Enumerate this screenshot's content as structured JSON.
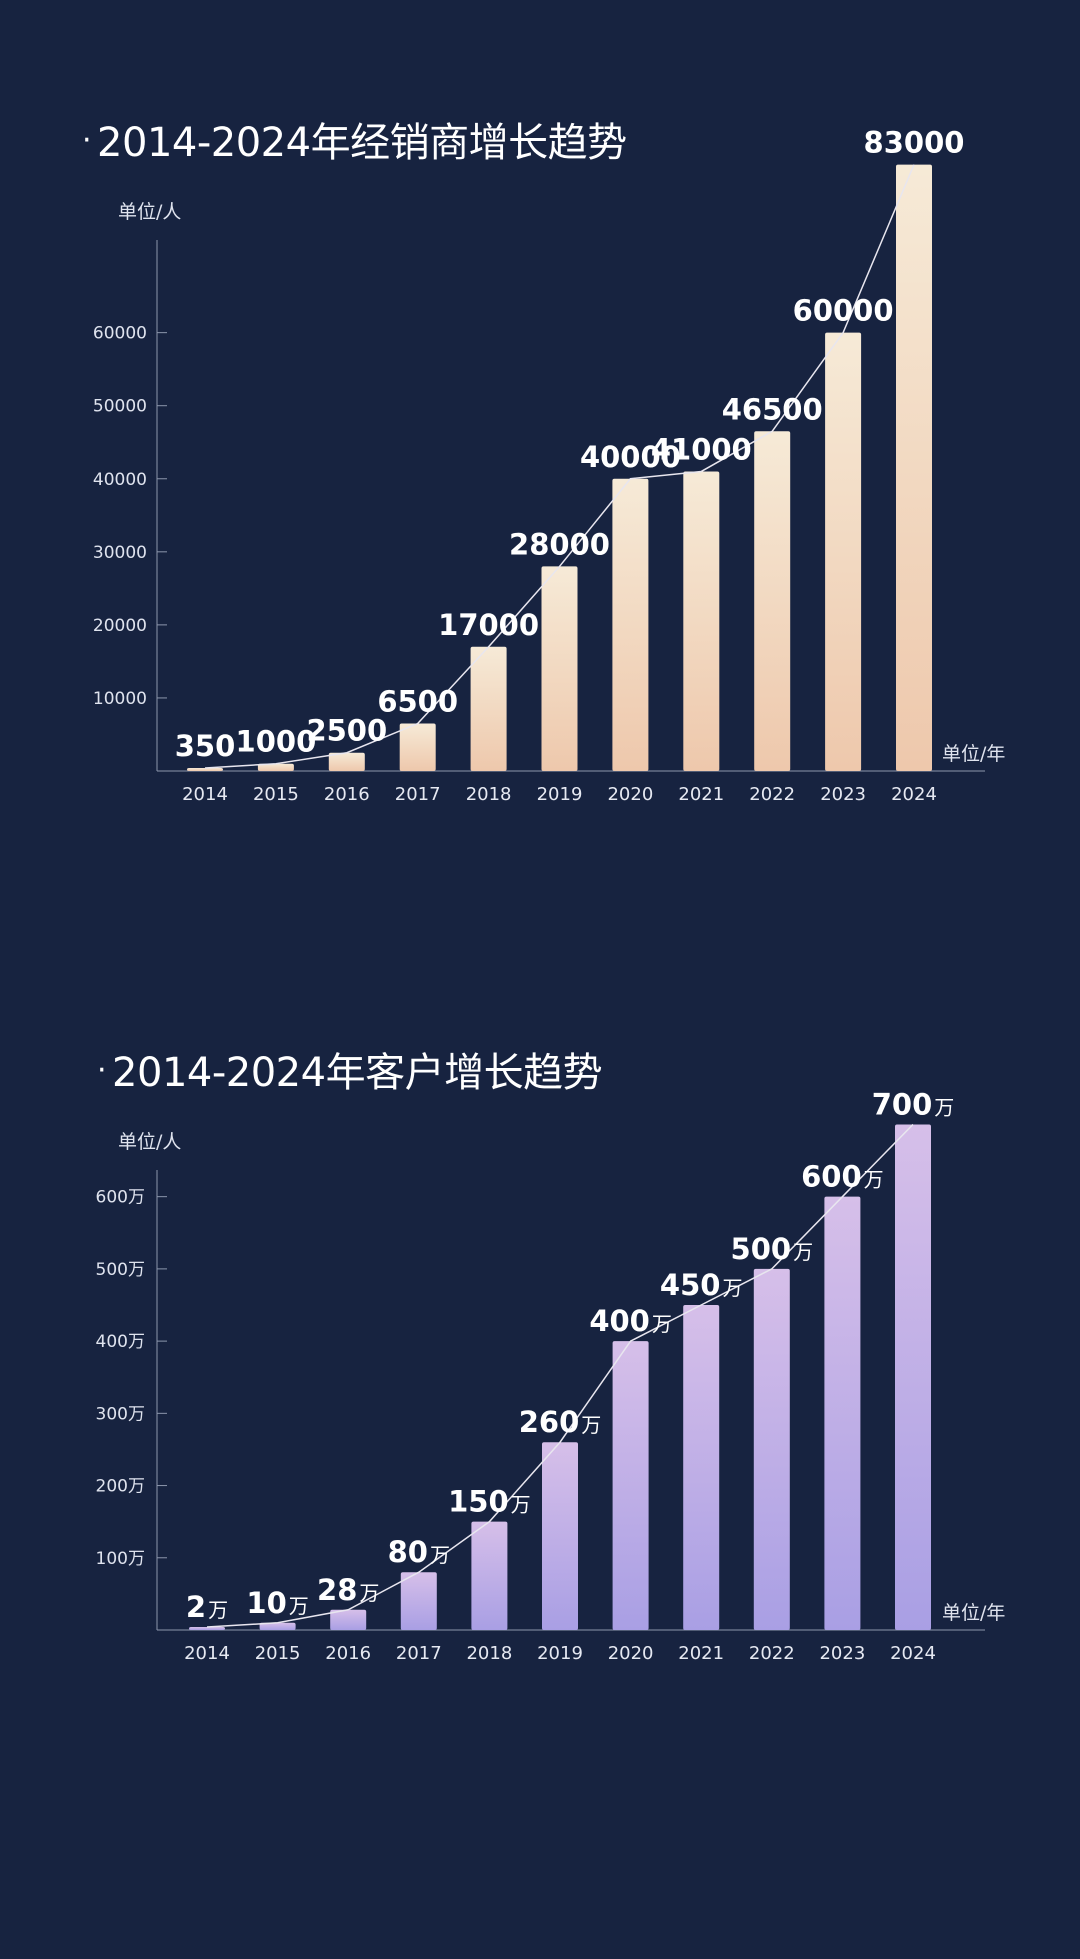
{
  "chart_data": [
    {
      "type": "bar",
      "title_prefix": "·",
      "title": "2014-2024年经销商增长趋势",
      "ylabel": "单位/人",
      "xlabel": "单位/年",
      "categories": [
        "2014",
        "2015",
        "2016",
        "2017",
        "2018",
        "2019",
        "2020",
        "2021",
        "2022",
        "2023",
        "2024"
      ],
      "values": [
        350,
        1000,
        2500,
        6500,
        17000,
        28000,
        40000,
        41000,
        46500,
        60000,
        83000
      ],
      "value_labels": [
        "350",
        "1000",
        "2500",
        "6500",
        "17000",
        "28000",
        "40000",
        "41000",
        "46500",
        "60000",
        "83000"
      ],
      "value_suffix": "",
      "yticks": [
        10000,
        20000,
        30000,
        40000,
        50000,
        60000
      ],
      "ytick_labels": [
        "10000",
        "20000",
        "30000",
        "40000",
        "50000",
        "60000"
      ],
      "ylim": [
        0,
        85000
      ],
      "grid": false,
      "trend_line": true,
      "bar_gradient": [
        "#f6ead7",
        "#eec8ac"
      ]
    },
    {
      "type": "bar",
      "title_prefix": "·",
      "title": "2014-2024年客户增长趋势",
      "ylabel": "单位/人",
      "xlabel": "单位/年",
      "categories": [
        "2014",
        "2015",
        "2016",
        "2017",
        "2018",
        "2019",
        "2020",
        "2021",
        "2022",
        "2023",
        "2024"
      ],
      "values": [
        2,
        10,
        28,
        80,
        150,
        260,
        400,
        450,
        500,
        600,
        700
      ],
      "value_labels": [
        "2",
        "10",
        "28",
        "80",
        "150",
        "260",
        "400",
        "450",
        "500",
        "600",
        "700"
      ],
      "value_suffix": "万",
      "yticks": [
        100,
        200,
        300,
        400,
        500,
        600
      ],
      "ytick_labels": [
        "100万",
        "200万",
        "300万",
        "400万",
        "500万",
        "600万"
      ],
      "ylim": [
        0,
        720
      ],
      "grid": false,
      "trend_line": true,
      "bar_gradient": [
        "#d6bfe9",
        "#a99fe4"
      ]
    }
  ]
}
